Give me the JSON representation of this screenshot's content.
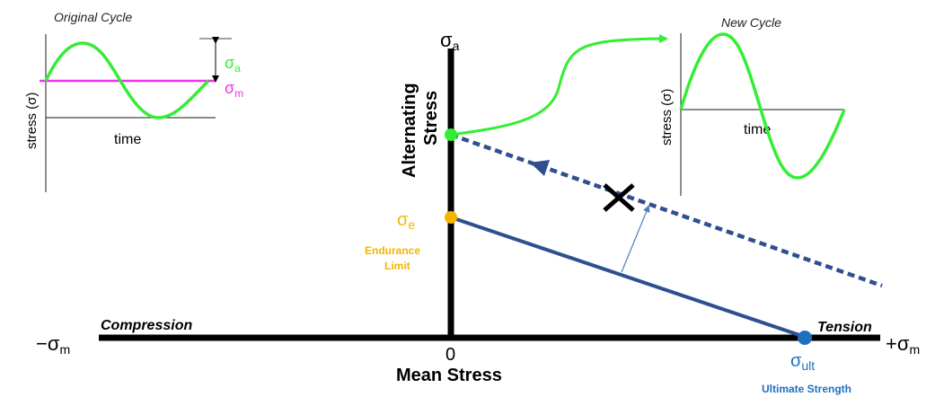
{
  "original_cycle": {
    "title": "Original Cycle",
    "ylabel": "stress (σ)",
    "xlabel": "time",
    "amp_label": "σ",
    "amp_sub": "a",
    "mean_label": "σ",
    "mean_sub": "m"
  },
  "new_cycle": {
    "title": "New Cycle",
    "ylabel": "stress (σ)",
    "xlabel": "time"
  },
  "axes": {
    "y_axis_label": "σ",
    "y_axis_sub": "a",
    "y_title_line1": "Alternating",
    "y_title_line2": "Stress",
    "x_left_sign": "−",
    "x_left_label": "σ",
    "x_left_sub": "m",
    "x_right_sign": "+",
    "x_right_label": "σ",
    "x_right_sub": "m",
    "origin_label": "0",
    "x_title": "Mean Stress",
    "compression_label": "Compression",
    "tension_label": "Tension"
  },
  "points": {
    "endurance_symbol": "σ",
    "endurance_sub": "e",
    "endurance_line1": "Endurance",
    "endurance_line2": "Limit",
    "ultimate_symbol": "σ",
    "ultimate_sub": "ult",
    "ultimate_label": "Ultimate Strength"
  },
  "colors": {
    "axis": "#000000",
    "green": "#33ee33",
    "magenta": "#ee33ee",
    "orange": "#f5b400",
    "blue_line": "#2f4f8f",
    "blue_point": "#1f6fc0",
    "dotted": "#2f4f8f"
  }
}
